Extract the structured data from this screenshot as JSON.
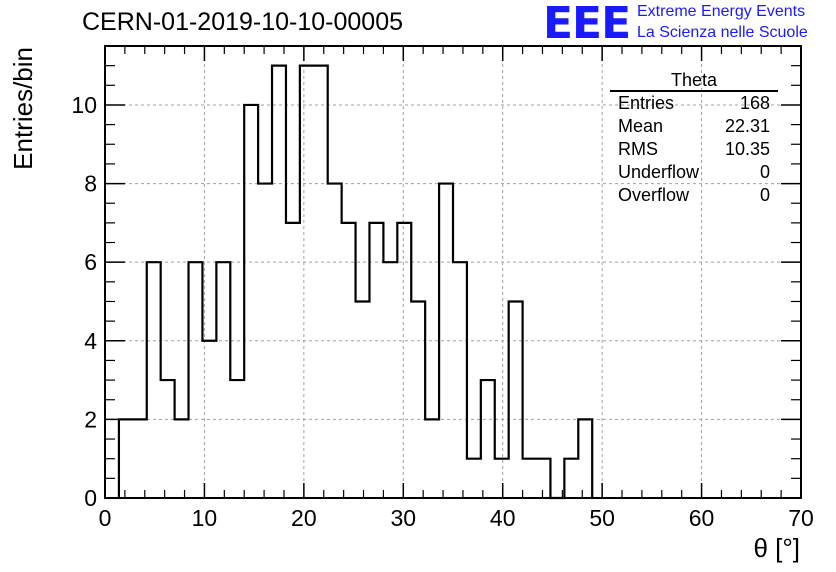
{
  "header": {
    "title": "CERN-01-2019-10-10-00005",
    "logo_text": "EEE",
    "logo_line1": "Extreme Energy Events",
    "logo_line2": "La Scienza nelle Scuole"
  },
  "stats": {
    "title": "Theta",
    "rows": [
      {
        "label": "Entries",
        "value": "168"
      },
      {
        "label": "Mean",
        "value": "22.31"
      },
      {
        "label": "RMS",
        "value": "10.35"
      },
      {
        "label": "Underflow",
        "value": "0"
      },
      {
        "label": "Overflow",
        "value": "0"
      }
    ]
  },
  "chart_data": {
    "type": "bar",
    "histogram": true,
    "xlabel": "θ [°]",
    "ylabel": "Entries/bin",
    "xlim": [
      0,
      70
    ],
    "ylim": [
      0,
      11.5
    ],
    "bin_width": 1.4,
    "bin_edges_start": 1.4,
    "values": [
      2,
      2,
      6,
      3,
      2,
      6,
      4,
      6,
      3,
      10,
      8,
      11,
      7,
      11,
      11,
      8,
      7,
      5,
      7,
      6,
      7,
      5,
      2,
      8,
      6,
      1,
      3,
      1,
      5,
      1,
      1,
      0,
      1,
      2
    ],
    "x_ticks": [
      0,
      10,
      20,
      30,
      40,
      50,
      60,
      70
    ],
    "y_ticks": [
      0,
      2,
      4,
      6,
      8,
      10
    ],
    "grid": true,
    "line_color": "#000000",
    "grid_color": "#a0a0a0",
    "accent_color": "#1a1aff"
  }
}
